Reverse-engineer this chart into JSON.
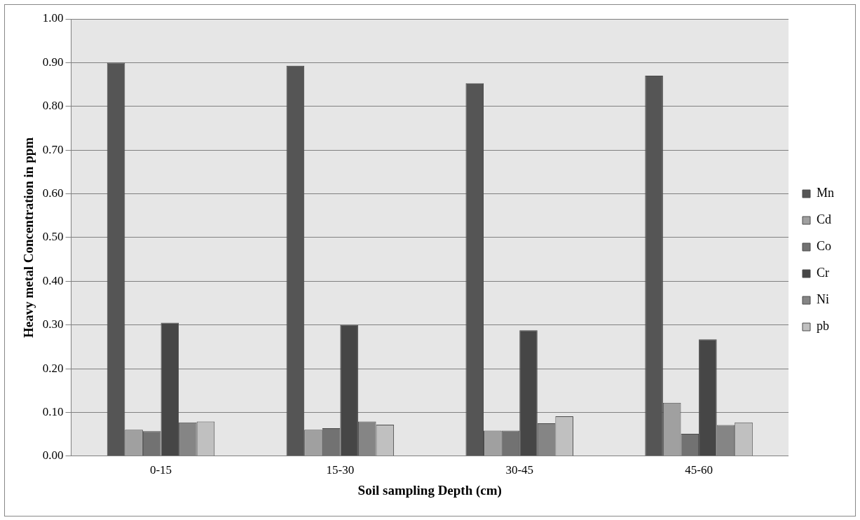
{
  "chart_data": {
    "type": "bar",
    "xlabel": "Soil sampling Depth (cm)",
    "ylabel": "Heavy metal Concentration in ppm",
    "categories": [
      "0-15",
      "15-30",
      "30-45",
      "45-60"
    ],
    "series": [
      {
        "name": "Mn",
        "color": "#555555",
        "values": [
          0.9,
          0.893,
          0.853,
          0.87
        ]
      },
      {
        "name": "Cd",
        "color": "#a0a0a0",
        "values": [
          0.06,
          0.06,
          0.058,
          0.122
        ]
      },
      {
        "name": "Co",
        "color": "#727272",
        "values": [
          0.057,
          0.064,
          0.058,
          0.051
        ]
      },
      {
        "name": "Cr",
        "color": "#464646",
        "values": [
          0.305,
          0.3,
          0.288,
          0.267
        ]
      },
      {
        "name": "Ni",
        "color": "#858585",
        "values": [
          0.077,
          0.079,
          0.075,
          0.071
        ]
      },
      {
        "name": "pb",
        "color": "#c0c0c0",
        "values": [
          0.079,
          0.072,
          0.091,
          0.077
        ]
      }
    ],
    "ylim": [
      0,
      1
    ],
    "yticks": [
      {
        "value": 0,
        "label": "0.00"
      },
      {
        "value": 0.1,
        "label": "0.10"
      },
      {
        "value": 0.2,
        "label": "0.20"
      },
      {
        "value": 0.3,
        "label": "0.30"
      },
      {
        "value": 0.4,
        "label": "0.40"
      },
      {
        "value": 0.5,
        "label": "0.50"
      },
      {
        "value": 0.6,
        "label": "0.60"
      },
      {
        "value": 0.7,
        "label": "0.70"
      },
      {
        "value": 0.8,
        "label": "0.80"
      },
      {
        "value": 0.9,
        "label": "0.90"
      },
      {
        "value": 1,
        "label": "1.00"
      }
    ],
    "grid": "y",
    "legend": "right"
  }
}
